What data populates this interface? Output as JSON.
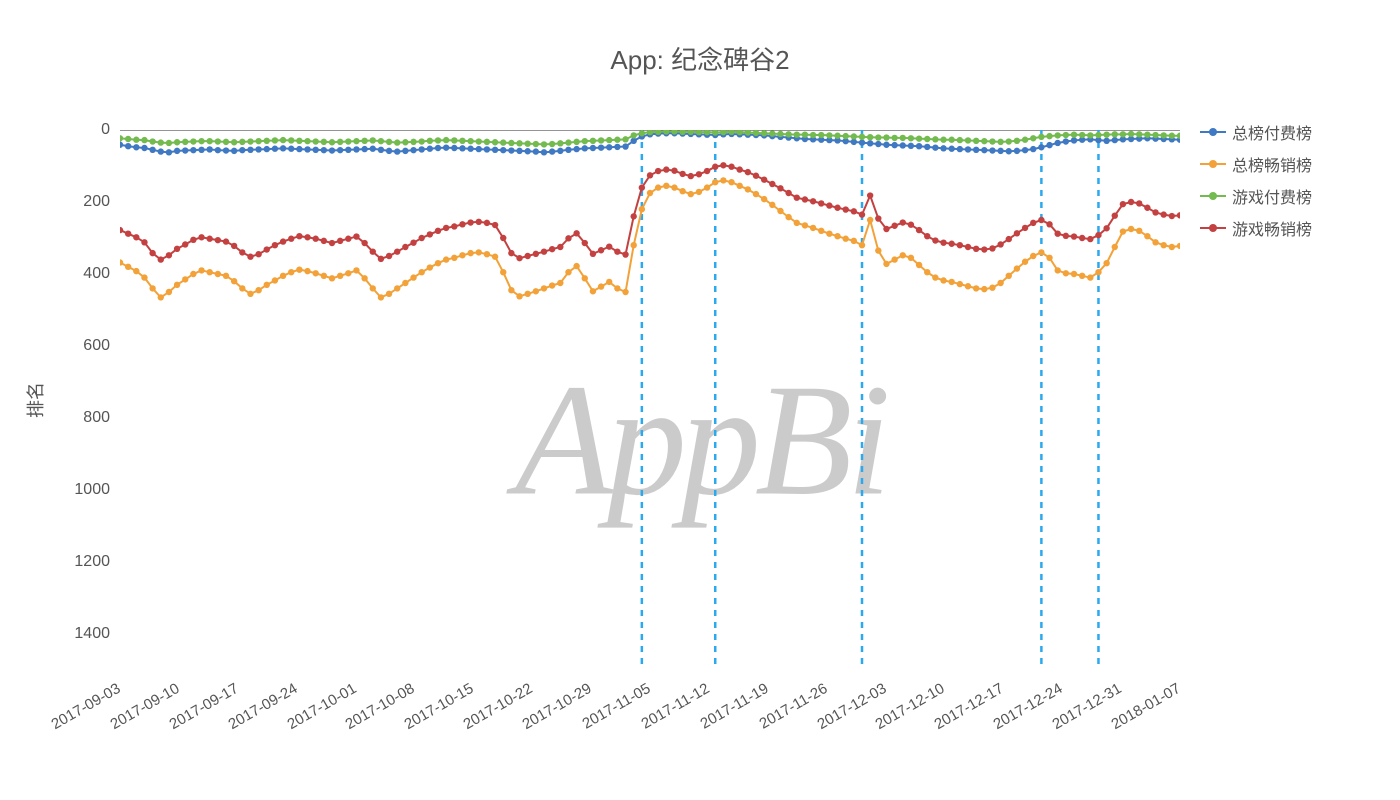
{
  "title": "App: 纪念碑谷2",
  "watermark_text": "AppBi",
  "watermark_color": "#c6c6c6",
  "background_color": "#ffffff",
  "text_color": "#555555",
  "title_fontsize": 26,
  "tick_fontsize": 16,
  "axis_label_fontsize": 18,
  "chart": {
    "type": "line",
    "y_axis": {
      "label": "排名",
      "inverted": true,
      "min": 0,
      "max": 1500,
      "tick_step": 200,
      "ticks": [
        0,
        200,
        400,
        600,
        800,
        1000,
        1200,
        1400
      ],
      "gridline_color": "#555555",
      "gridline_width": 1
    },
    "x_axis": {
      "label_rotation_deg": -30,
      "baseline_color": "#555555",
      "tick_labels": [
        "2017-09-03",
        "2017-09-10",
        "2017-09-17",
        "2017-09-24",
        "2017-10-01",
        "2017-10-08",
        "2017-10-15",
        "2017-10-22",
        "2017-10-29",
        "2017-11-05",
        "2017-11-12",
        "2017-11-19",
        "2017-11-26",
        "2017-12-03",
        "2017-12-10",
        "2017-12-17",
        "2017-12-24",
        "2017-12-31",
        "2018-01-07"
      ],
      "n_points": 131
    },
    "vertical_markers": {
      "color": "#2ca8ef",
      "dash": "6 6",
      "width": 2.5,
      "x_indices": [
        64,
        73,
        91,
        113,
        120
      ]
    },
    "marker_radius": 3.2,
    "line_width": 2,
    "series": [
      {
        "name": "总榜付费榜",
        "color": "#3F78C3",
        "values": [
          41,
          45,
          48,
          50,
          55,
          60,
          62,
          58,
          57,
          56,
          55,
          54,
          56,
          57,
          58,
          56,
          55,
          54,
          53,
          52,
          51,
          52,
          53,
          54,
          55,
          56,
          57,
          56,
          55,
          54,
          53,
          52,
          55,
          58,
          60,
          58,
          56,
          54,
          52,
          50,
          49,
          50,
          51,
          52,
          53,
          54,
          55,
          56,
          57,
          58,
          59,
          60,
          62,
          60,
          58,
          55,
          53,
          51,
          50,
          49,
          48,
          47,
          46,
          30,
          18,
          12,
          10,
          9,
          9,
          10,
          11,
          12,
          13,
          14,
          12,
          11,
          12,
          13,
          14,
          15,
          17,
          19,
          21,
          23,
          25,
          26,
          27,
          28,
          29,
          31,
          33,
          35,
          37,
          39,
          41,
          42,
          43,
          44,
          45,
          47,
          49,
          51,
          52,
          53,
          54,
          55,
          56,
          57,
          58,
          59,
          58,
          56,
          53,
          48,
          42,
          36,
          32,
          29,
          27,
          26,
          28,
          30,
          28,
          26,
          25,
          24,
          23,
          24,
          25,
          26,
          27
        ]
      },
      {
        "name": "总榜畅销榜",
        "color": "#F2A238",
        "values": [
          368,
          380,
          392,
          410,
          440,
          465,
          450,
          430,
          415,
          400,
          390,
          395,
          400,
          405,
          420,
          440,
          455,
          445,
          430,
          418,
          405,
          395,
          388,
          392,
          398,
          405,
          412,
          405,
          398,
          390,
          412,
          440,
          465,
          455,
          440,
          425,
          410,
          395,
          382,
          370,
          360,
          355,
          348,
          342,
          340,
          345,
          352,
          395,
          445,
          462,
          455,
          448,
          440,
          432,
          425,
          395,
          378,
          412,
          448,
          435,
          422,
          440,
          450,
          320,
          220,
          175,
          160,
          155,
          160,
          170,
          178,
          172,
          160,
          145,
          140,
          145,
          155,
          165,
          178,
          192,
          208,
          225,
          242,
          258,
          265,
          272,
          280,
          288,
          295,
          302,
          308,
          320,
          250,
          335,
          372,
          360,
          348,
          355,
          375,
          395,
          410,
          418,
          422,
          428,
          434,
          440,
          442,
          438,
          425,
          405,
          385,
          366,
          350,
          340,
          355,
          390,
          398,
          400,
          405,
          410,
          395,
          370,
          325,
          282,
          275,
          280,
          295,
          312,
          320,
          325,
          322
        ]
      },
      {
        "name": "游戏付费榜",
        "color": "#73BA4F",
        "values": [
          23,
          25,
          27,
          28,
          32,
          35,
          36,
          34,
          33,
          32,
          31,
          31,
          32,
          33,
          34,
          33,
          32,
          31,
          30,
          29,
          28,
          29,
          30,
          31,
          32,
          33,
          34,
          33,
          32,
          31,
          30,
          29,
          31,
          33,
          35,
          34,
          33,
          32,
          30,
          29,
          28,
          29,
          30,
          31,
          32,
          33,
          34,
          35,
          36,
          37,
          38,
          39,
          40,
          39,
          37,
          35,
          33,
          31,
          30,
          29,
          28,
          27,
          26,
          15,
          9,
          6,
          5,
          4,
          4,
          5,
          5,
          6,
          6,
          7,
          6,
          5,
          6,
          7,
          8,
          9,
          10,
          11,
          12,
          13,
          13,
          14,
          14,
          15,
          16,
          17,
          18,
          19,
          20,
          21,
          21,
          22,
          22,
          23,
          24,
          25,
          26,
          27,
          27,
          28,
          29,
          30,
          31,
          32,
          33,
          32,
          30,
          27,
          23,
          19,
          17,
          15,
          14,
          13,
          14,
          15,
          14,
          13,
          12,
          12,
          11,
          12,
          13,
          14,
          15,
          16,
          16
        ]
      },
      {
        "name": "游戏畅销榜",
        "color": "#C44141",
        "values": [
          278,
          288,
          298,
          312,
          342,
          360,
          348,
          330,
          318,
          305,
          298,
          302,
          306,
          310,
          322,
          340,
          352,
          345,
          332,
          320,
          310,
          302,
          295,
          298,
          302,
          308,
          314,
          308,
          302,
          296,
          314,
          338,
          358,
          350,
          338,
          325,
          313,
          300,
          290,
          280,
          272,
          268,
          262,
          257,
          255,
          258,
          264,
          300,
          342,
          356,
          350,
          344,
          338,
          331,
          325,
          301,
          287,
          314,
          344,
          334,
          324,
          338,
          346,
          240,
          160,
          126,
          114,
          110,
          113,
          122,
          128,
          123,
          114,
          102,
          98,
          102,
          110,
          117,
          127,
          138,
          150,
          162,
          175,
          188,
          193,
          198,
          204,
          210,
          216,
          221,
          226,
          235,
          182,
          246,
          275,
          266,
          257,
          263,
          278,
          295,
          307,
          313,
          316,
          320,
          325,
          330,
          332,
          329,
          318,
          303,
          287,
          272,
          258,
          250,
          262,
          288,
          294,
          296,
          300,
          303,
          292,
          273,
          238,
          206,
          200,
          204,
          216,
          229,
          235,
          239,
          237
        ]
      }
    ]
  },
  "legend": {
    "position": "top-right",
    "items": [
      "总榜付费榜",
      "总榜畅销榜",
      "游戏付费榜",
      "游戏畅销榜"
    ]
  }
}
